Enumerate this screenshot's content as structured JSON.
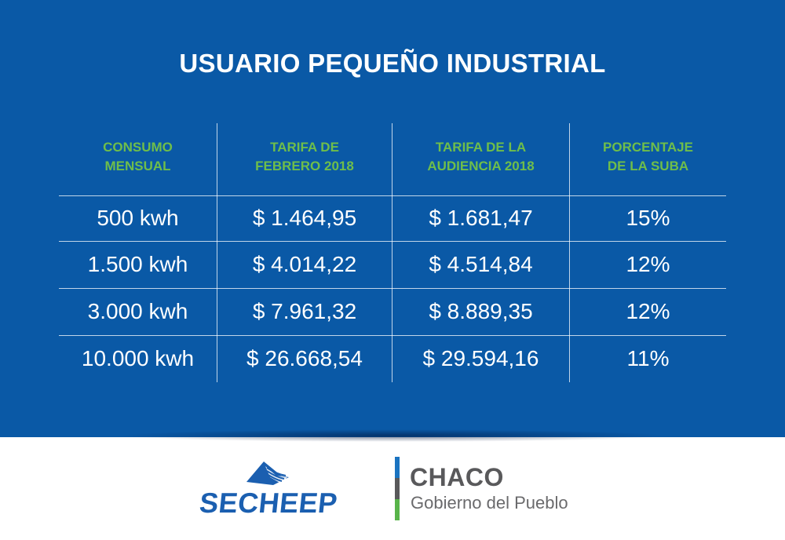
{
  "title": "USUARIO PEQUEÑO INDUSTRIAL",
  "table": {
    "headers": [
      "CONSUMO\nMENSUAL",
      "TARIFA DE\nFEBRERO 2018",
      "TARIFA DE LA\nAUDIENCIA 2018",
      "PORCENTAJE\nDE LA SUBA"
    ],
    "rows": [
      [
        "500 kwh",
        "$ 1.464,95",
        "$ 1.681,47",
        "15%"
      ],
      [
        "1.500 kwh",
        "$ 4.014,22",
        "$ 4.514,84",
        "12%"
      ],
      [
        "3.000 kwh",
        "$ 7.961,32",
        "$ 8.889,35",
        "12%"
      ],
      [
        "10.000 kwh",
        "$ 26.668,54",
        "$ 29.594,16",
        "11%"
      ]
    ]
  },
  "footer": {
    "secheep": "SECHEEP",
    "chaco_title": "CHACO",
    "chaco_subtitle": "Gobierno del Pueblo"
  },
  "colors": {
    "background": "#0a59a6",
    "header_text": "#6fbe4a",
    "body_text": "#ffffff",
    "secheep_blue": "#1b5fb0",
    "chaco_gray": "#59595b"
  }
}
